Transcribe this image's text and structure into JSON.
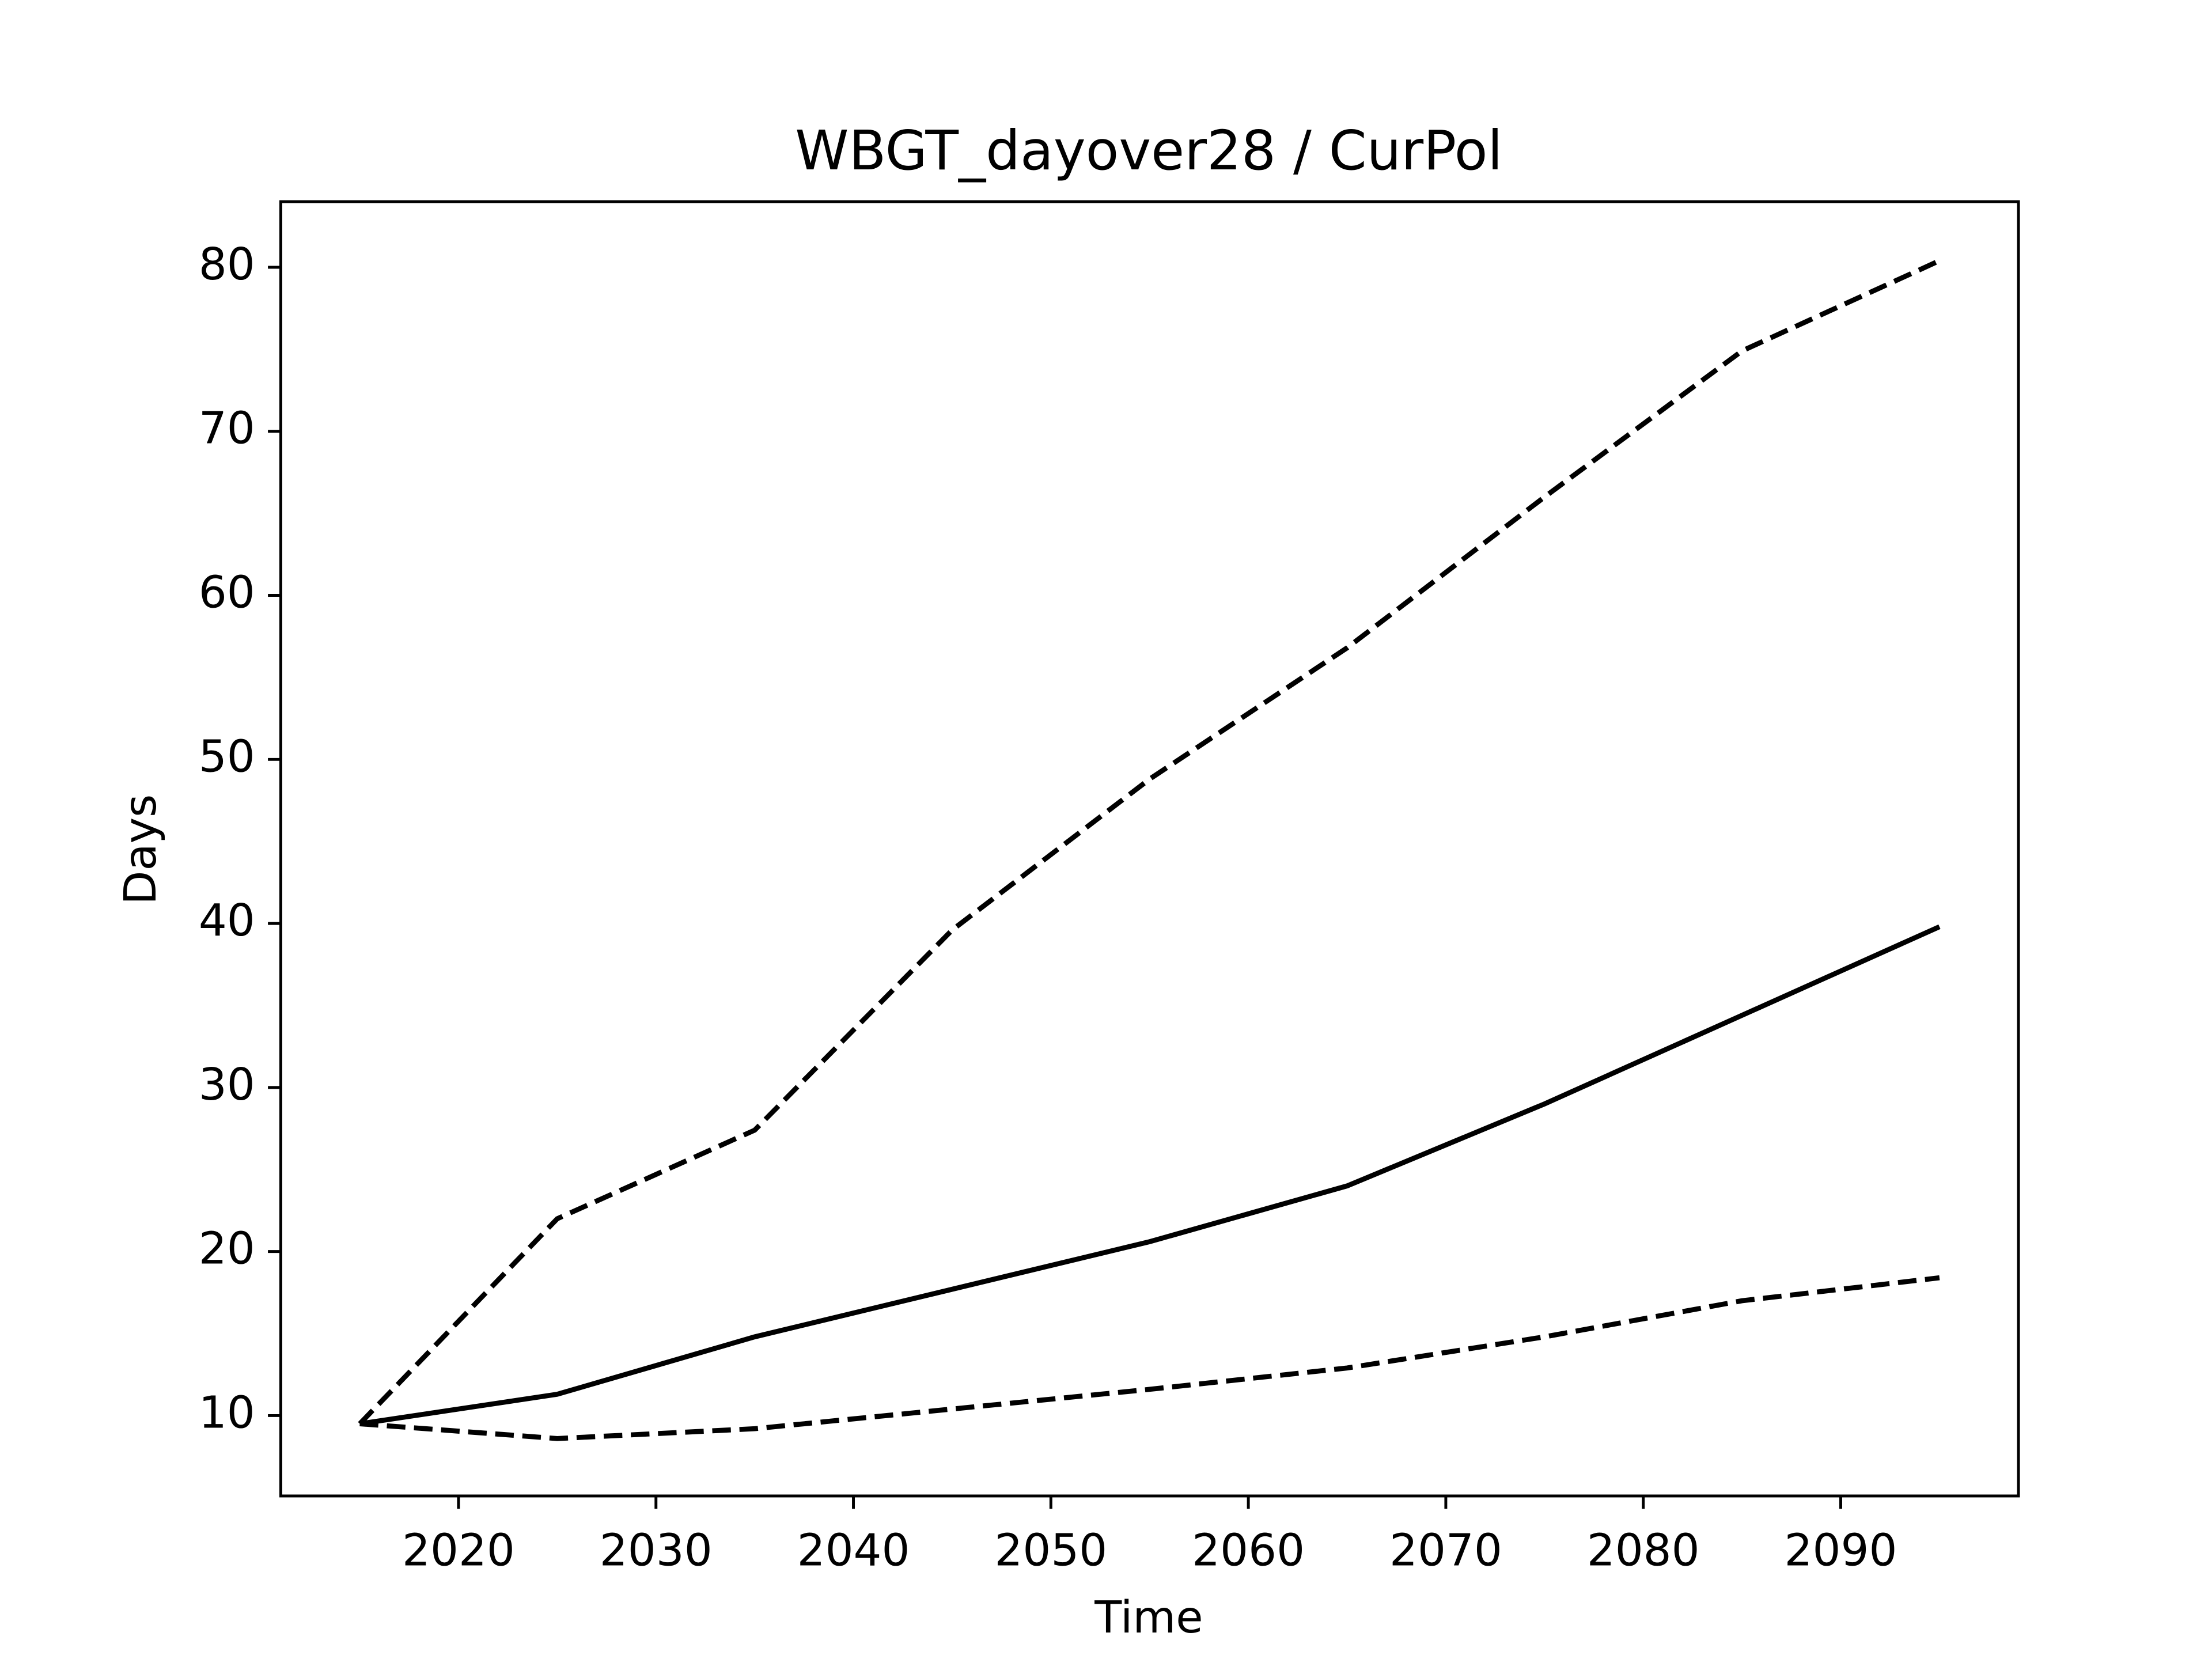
{
  "chart_data": {
    "type": "line",
    "title": "WBGT_dayover28 / CurPol",
    "xlabel": "Time",
    "ylabel": "Days",
    "x": [
      2015,
      2025,
      2035,
      2045,
      2055,
      2065,
      2075,
      2085,
      2095
    ],
    "series": [
      {
        "color": "#000000",
        "linestyle": "solid",
        "values": [
          9.5,
          11.3,
          14.8,
          17.7,
          20.6,
          24.0,
          29.0,
          34.4,
          39.8
        ]
      },
      {
        "color": "#000000",
        "linestyle": "dashed",
        "values": [
          9.5,
          22.0,
          27.4,
          39.6,
          48.8,
          56.8,
          66.0,
          74.9,
          80.4
        ]
      },
      {
        "color": "#000000",
        "linestyle": "dashed",
        "values": [
          9.5,
          8.6,
          9.2,
          10.4,
          11.6,
          12.9,
          14.8,
          17.0,
          18.4
        ]
      }
    ],
    "xlim": [
      2011,
      2099
    ],
    "xticks": [
      2020,
      2030,
      2040,
      2050,
      2060,
      2070,
      2080,
      2090
    ],
    "ylim": [
      5.1,
      84.0
    ],
    "yticks": [
      10,
      20,
      30,
      40,
      50,
      60,
      70,
      80
    ],
    "grid": false
  }
}
